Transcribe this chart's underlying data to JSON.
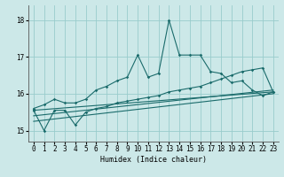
{
  "xlabel": "Humidex (Indice chaleur)",
  "ylabel": "",
  "xlim": [
    -0.5,
    23.5
  ],
  "ylim": [
    14.7,
    18.4
  ],
  "yticks": [
    15,
    16,
    17,
    18
  ],
  "xticks": [
    0,
    1,
    2,
    3,
    4,
    5,
    6,
    7,
    8,
    9,
    10,
    11,
    12,
    13,
    14,
    15,
    16,
    17,
    18,
    19,
    20,
    21,
    22,
    23
  ],
  "bg_color": "#cce8e8",
  "grid_color": "#99cccc",
  "line_color": "#1a6b6b",
  "series1_x": [
    0,
    1,
    2,
    3,
    4,
    5,
    6,
    7,
    8,
    9,
    10,
    11,
    12,
    13,
    14,
    15,
    16,
    17,
    18,
    19,
    20,
    21,
    22,
    23
  ],
  "series1_y": [
    15.6,
    15.7,
    15.85,
    15.75,
    15.75,
    15.85,
    16.1,
    16.2,
    16.35,
    16.45,
    17.05,
    16.45,
    16.55,
    18.0,
    17.05,
    17.05,
    17.05,
    16.6,
    16.55,
    16.3,
    16.35,
    16.1,
    15.95,
    16.05
  ],
  "series2_x": [
    0,
    1,
    2,
    3,
    4,
    5,
    6,
    7,
    8,
    9,
    10,
    11,
    12,
    13,
    14,
    15,
    16,
    17,
    18,
    19,
    20,
    21,
    22,
    23
  ],
  "series2_y": [
    15.55,
    15.0,
    15.55,
    15.55,
    15.15,
    15.5,
    15.6,
    15.65,
    15.75,
    15.8,
    15.85,
    15.9,
    15.95,
    16.05,
    16.1,
    16.15,
    16.2,
    16.3,
    16.4,
    16.5,
    16.6,
    16.65,
    16.7,
    16.05
  ],
  "series3_x": [
    0,
    23
  ],
  "series3_y": [
    15.55,
    16.05
  ],
  "series4_x": [
    0,
    23
  ],
  "series4_y": [
    15.4,
    16.1
  ],
  "series5_x": [
    0,
    23
  ],
  "series5_y": [
    15.25,
    16.0
  ]
}
